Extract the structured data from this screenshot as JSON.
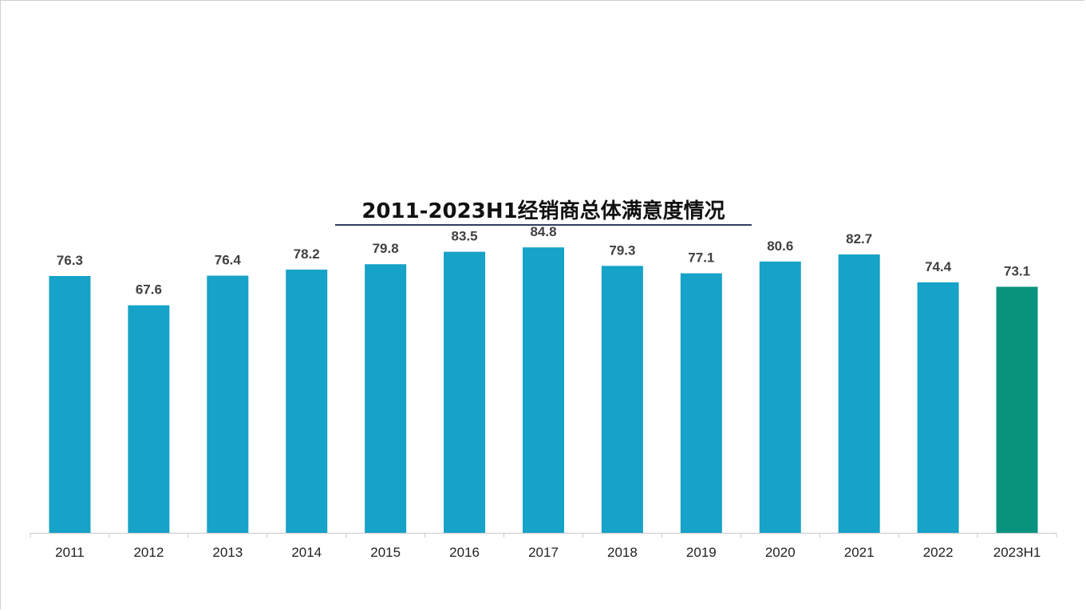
{
  "chart_data": {
    "type": "bar",
    "title": "2011-2023H1经销商总体满意度情况",
    "categories": [
      "2011",
      "2012",
      "2013",
      "2014",
      "2015",
      "2016",
      "2017",
      "2018",
      "2019",
      "2020",
      "2021",
      "2022",
      "2023H1"
    ],
    "values": [
      76.3,
      67.6,
      76.4,
      78.2,
      79.8,
      83.5,
      84.8,
      79.3,
      77.1,
      80.6,
      82.7,
      74.4,
      73.1
    ],
    "value_labels": [
      "76.3",
      "67.6",
      "76.4",
      "78.2",
      "79.8",
      "83.5",
      "84.8",
      "79.3",
      "77.1",
      "80.6",
      "82.7",
      "74.4",
      "73.1"
    ],
    "xlabel": "",
    "ylabel": "",
    "ylim": [
      0,
      100
    ],
    "grid": false,
    "colors": {
      "default": "#17a2c8",
      "highlight": "#09937e",
      "highlight_category": "2023H1",
      "title_underline": "#2f3c5c",
      "axis": "#c8c8c8"
    }
  }
}
